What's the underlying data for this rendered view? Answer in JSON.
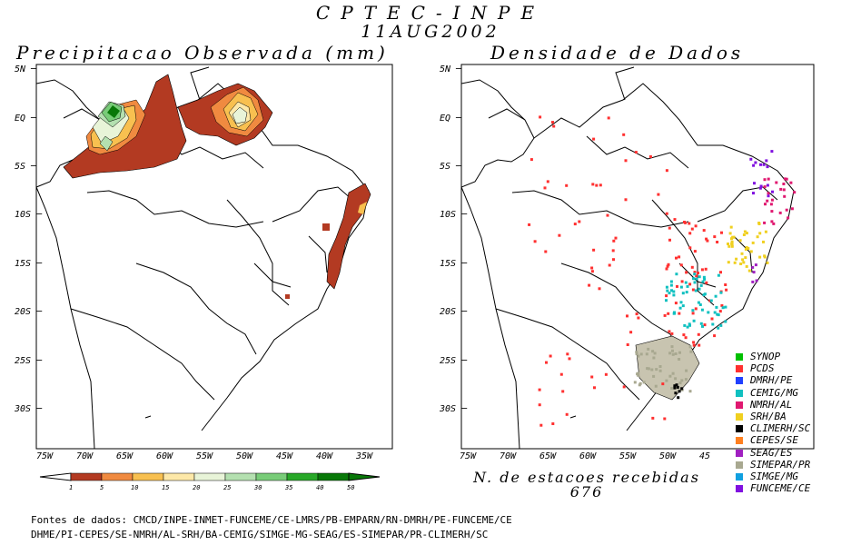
{
  "header": {
    "title": "CPTEC-INPE",
    "date": "11AUG2002"
  },
  "left_panel": {
    "title": "Precipitacao Observada (mm)"
  },
  "right_panel": {
    "title": "Densidade de Dados"
  },
  "lat_labels": [
    "5N",
    "EQ",
    "5S",
    "10S",
    "15S",
    "20S",
    "25S",
    "30S"
  ],
  "lon_labels_left": [
    "75W",
    "70W",
    "65W",
    "60W",
    "55W",
    "50W",
    "45W",
    "40W",
    "35W"
  ],
  "lon_labels_right": [
    "75W",
    "70W",
    "65W",
    "60W",
    "55W",
    "50W",
    "45"
  ],
  "colorbar": {
    "ticks": [
      "1",
      "5",
      "10",
      "15",
      "20",
      "25",
      "30",
      "35",
      "40",
      "50"
    ],
    "colors": [
      "#b33a22",
      "#f08a40",
      "#f8c050",
      "#fde8a8",
      "#e8f4d8",
      "#b4e0b0",
      "#78cc78",
      "#28a828",
      "#087808"
    ]
  },
  "legend": [
    {
      "label": "SYNOP",
      "color": "#00c000"
    },
    {
      "label": "PCDS",
      "color": "#ff3030"
    },
    {
      "label": "DMRH/PE",
      "color": "#2040ff"
    },
    {
      "label": "CEMIG/MG",
      "color": "#10c0c0"
    },
    {
      "label": "NMRH/AL",
      "color": "#e01870"
    },
    {
      "label": "SRH/BA",
      "color": "#f0d020"
    },
    {
      "label": "CLIMERH/SC",
      "color": "#000000"
    },
    {
      "label": "CEPES/SE",
      "color": "#ff8020"
    },
    {
      "label": "SEAG/ES",
      "color": "#a020c0"
    },
    {
      "label": "SIMEPAR/PR",
      "color": "#a8a890"
    },
    {
      "label": "SIMGE/MG",
      "color": "#10a0e0"
    },
    {
      "label": "FUNCEME/CE",
      "color": "#8010e0"
    }
  ],
  "stations": {
    "label": "N. de estacoes recebidas",
    "count": "676"
  },
  "sources": {
    "line1": "Fontes de dados: CMCD/INPE-INMET-FUNCEME/CE-LMRS/PB-EMPARN/RN-DMRH/PE-FUNCEME/CE",
    "line2": "DHME/PI-CEPES/SE-NMRH/AL-SRH/BA-CEMIG/SIMGE-MG-SEAG/ES-SIMEPAR/PR-CLIMERH/SC"
  }
}
